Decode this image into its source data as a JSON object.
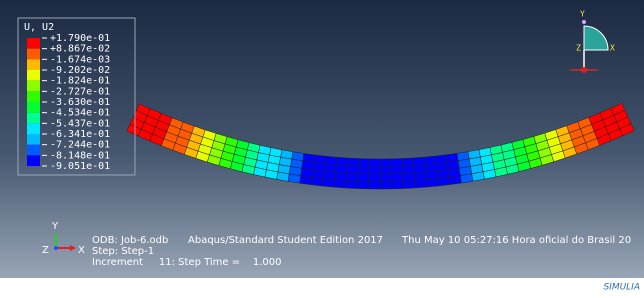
{
  "legend": {
    "title": "U, U2",
    "labels": [
      "+1.790e-01",
      "+8.867e-02",
      "-1.674e-03",
      "-9.202e-02",
      "-1.824e-01",
      "-2.727e-01",
      "-3.630e-01",
      "-4.534e-01",
      "-5.437e-01",
      "-6.341e-01",
      "-7.244e-01",
      "-8.148e-01",
      "-9.051e-01"
    ],
    "colors": [
      "#ff0000",
      "#ff5c00",
      "#ffb900",
      "#e8ff00",
      "#8bff00",
      "#2eff00",
      "#00ff2e",
      "#00ff8b",
      "#00e8ff",
      "#00b9ff",
      "#005cff",
      "#0000ff"
    ]
  },
  "info": {
    "odb": "ODB: Job-6.odb",
    "edition": "Abaqus/Standard Student Edition 2017",
    "date": "Thu May 10 05:27:16 Hora oficial do Brasil 20",
    "step": "Step: Step-1",
    "increment": "Increment     11: Step Time =    1.000"
  },
  "triad": {
    "y": "Y",
    "x": "X",
    "z": "Z"
  },
  "view_triad": {
    "y": "Y",
    "z": "Z",
    "x": "X"
  },
  "brand": "SIMULIA"
}
